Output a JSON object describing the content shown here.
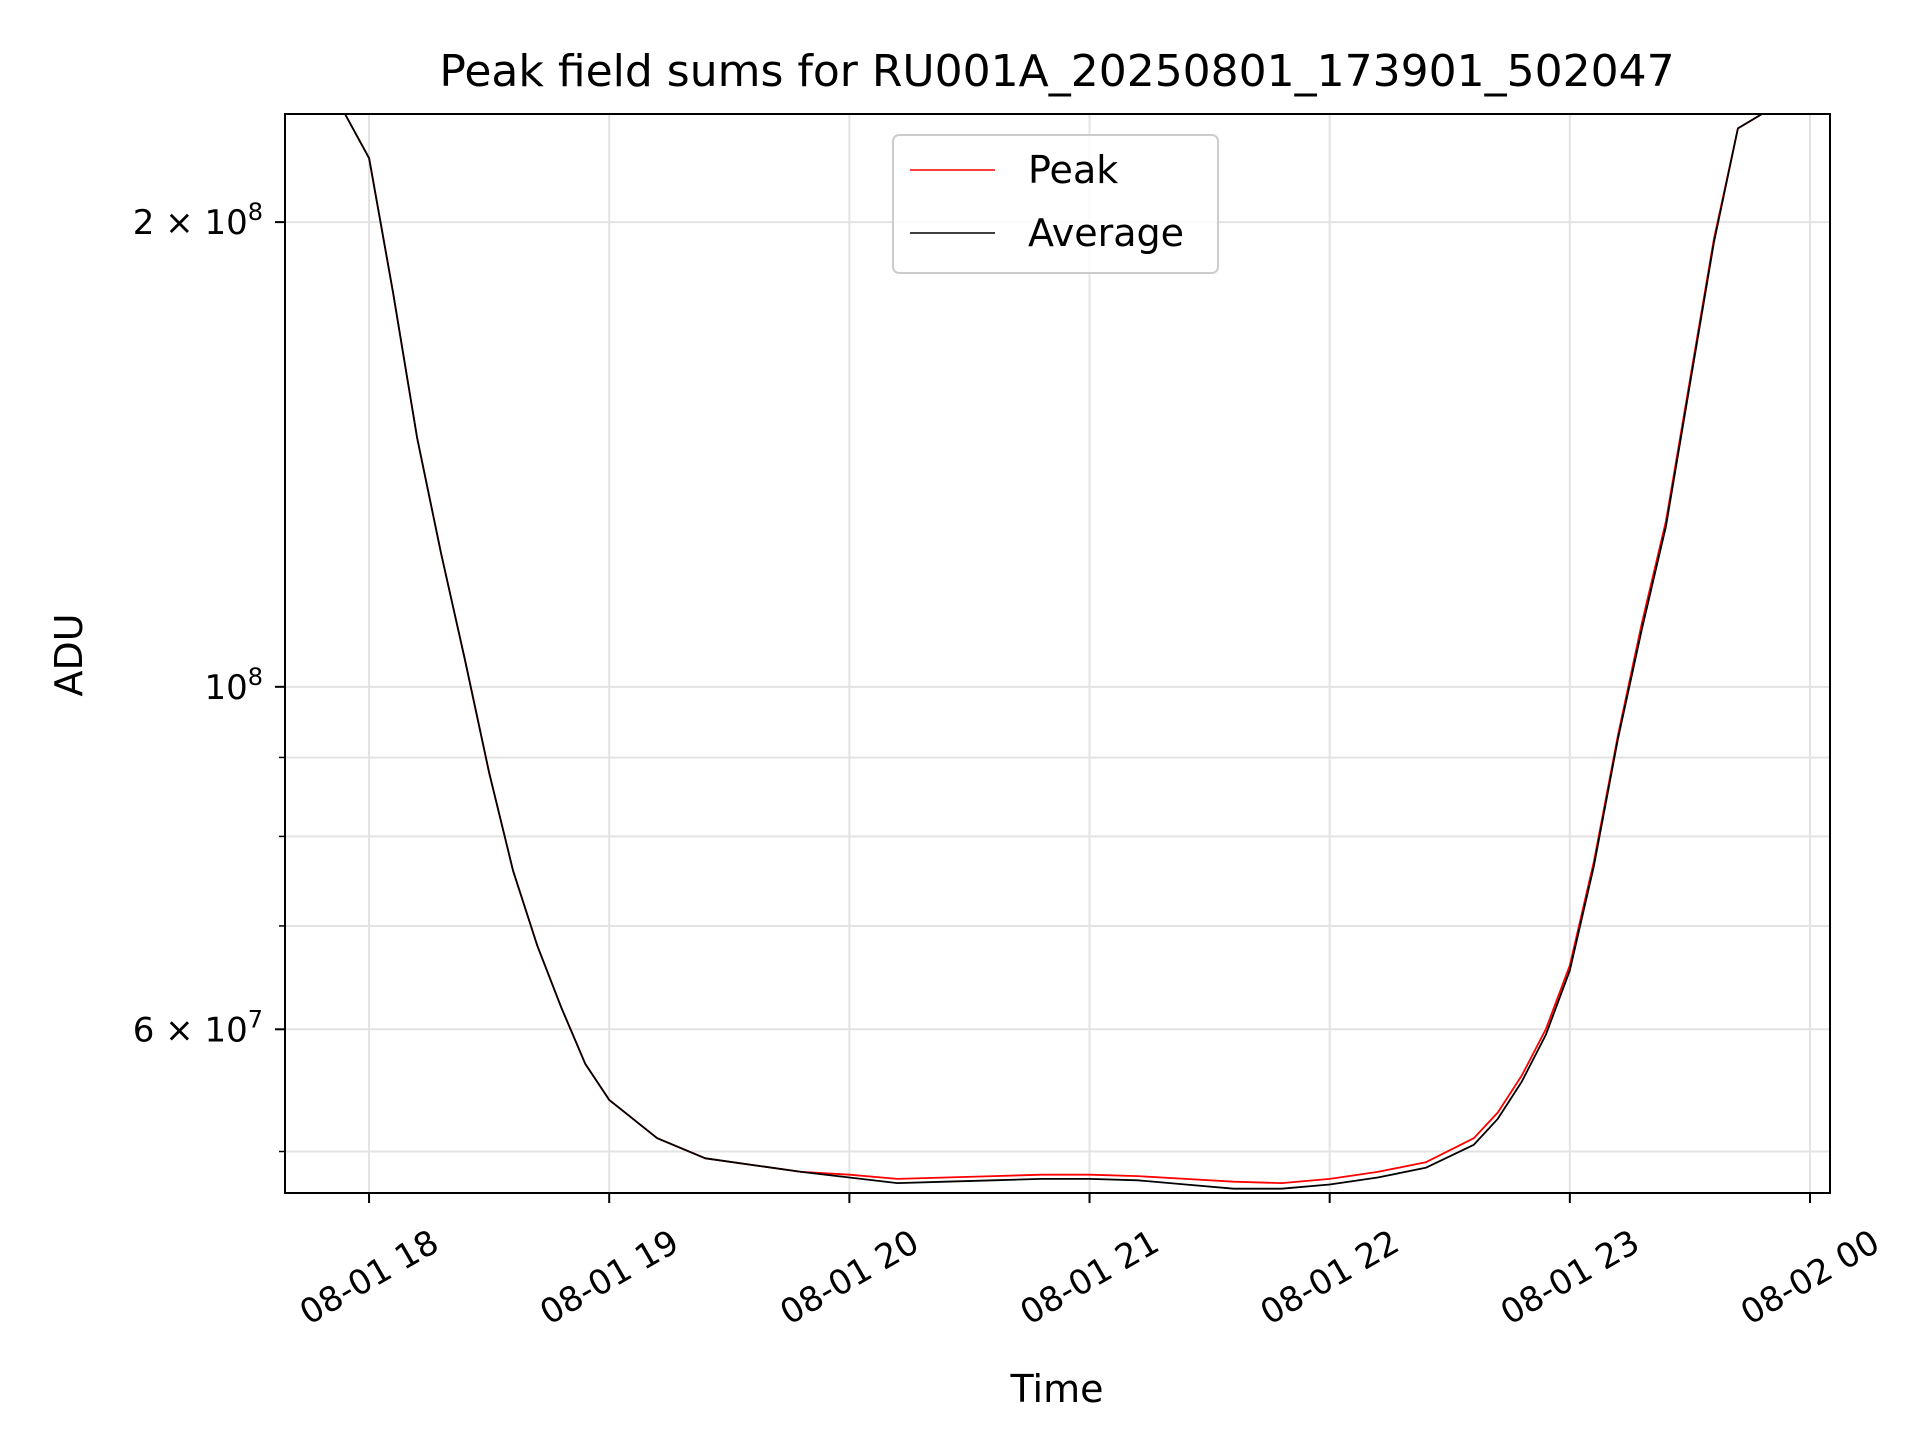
{
  "chart_data": {
    "type": "line",
    "title": "Peak field sums for RU001A_20250801_173901_502047",
    "xlabel": "Time",
    "ylabel": "ADU",
    "yscale": "log",
    "grid": true,
    "legend_placement": "top-center",
    "x_range": [
      "2025-08-01 17:39",
      "2025-08-02 00:05"
    ],
    "y_range": [
      47000000,
      235000000
    ],
    "x_ticks": [
      {
        "value": "2025-08-01 18:00",
        "label": "08-01 18"
      },
      {
        "value": "2025-08-01 19:00",
        "label": "08-01 19"
      },
      {
        "value": "2025-08-01 20:00",
        "label": "08-01 20"
      },
      {
        "value": "2025-08-01 21:00",
        "label": "08-01 21"
      },
      {
        "value": "2025-08-01 22:00",
        "label": "08-01 22"
      },
      {
        "value": "2025-08-01 23:00",
        "label": "08-01 23"
      },
      {
        "value": "2025-08-02 00:00",
        "label": "08-02 00"
      }
    ],
    "y_major_ticks": [
      {
        "value": 60000000,
        "mantissa": "6",
        "exponent": "7"
      },
      {
        "value": 100000000,
        "mantissa": "",
        "exponent": "8"
      },
      {
        "value": 200000000,
        "mantissa": "2",
        "exponent": "8"
      }
    ],
    "y_minor_ticks": [
      50000000,
      70000000,
      80000000,
      90000000
    ],
    "series": [
      {
        "name": "Peak",
        "color": "#ff0000",
        "x": [
          "2025-08-01 17:39",
          "2025-08-01 17:54",
          "2025-08-01 18:00",
          "2025-08-01 18:06",
          "2025-08-01 18:12",
          "2025-08-01 18:18",
          "2025-08-01 18:24",
          "2025-08-01 18:30",
          "2025-08-01 18:36",
          "2025-08-01 18:42",
          "2025-08-01 18:48",
          "2025-08-01 18:54",
          "2025-08-01 19:00",
          "2025-08-01 19:12",
          "2025-08-01 19:24",
          "2025-08-01 19:36",
          "2025-08-01 19:48",
          "2025-08-01 20:00",
          "2025-08-01 20:12",
          "2025-08-01 20:24",
          "2025-08-01 20:36",
          "2025-08-01 20:48",
          "2025-08-01 21:00",
          "2025-08-01 21:12",
          "2025-08-01 21:24",
          "2025-08-01 21:36",
          "2025-08-01 21:48",
          "2025-08-01 22:00",
          "2025-08-01 22:12",
          "2025-08-01 22:24",
          "2025-08-01 22:36",
          "2025-08-01 22:42",
          "2025-08-01 22:48",
          "2025-08-01 22:54",
          "2025-08-01 23:00",
          "2025-08-01 23:06",
          "2025-08-01 23:12",
          "2025-08-01 23:18",
          "2025-08-01 23:24",
          "2025-08-01 23:30",
          "2025-08-01 23:36",
          "2025-08-01 23:42",
          "2025-08-01 23:48",
          "2025-08-02 00:05"
        ],
        "y": [
          235000000,
          235000000,
          220000000,
          180000000,
          145000000,
          122000000,
          104000000,
          88000000,
          76000000,
          68000000,
          62000000,
          57000000,
          54000000,
          51000000,
          49500000,
          49000000,
          48500000,
          48300000,
          48000000,
          48100000,
          48200000,
          48300000,
          48300000,
          48200000,
          48000000,
          47800000,
          47700000,
          48000000,
          48500000,
          49200000,
          51000000,
          53000000,
          56000000,
          60000000,
          66000000,
          77000000,
          93000000,
          110000000,
          128000000,
          158000000,
          195000000,
          230000000,
          235000000,
          235000000
        ]
      },
      {
        "name": "Average",
        "color": "#000000",
        "x": [
          "2025-08-01 17:39",
          "2025-08-01 17:54",
          "2025-08-01 18:00",
          "2025-08-01 18:06",
          "2025-08-01 18:12",
          "2025-08-01 18:18",
          "2025-08-01 18:24",
          "2025-08-01 18:30",
          "2025-08-01 18:36",
          "2025-08-01 18:42",
          "2025-08-01 18:48",
          "2025-08-01 18:54",
          "2025-08-01 19:00",
          "2025-08-01 19:12",
          "2025-08-01 19:24",
          "2025-08-01 19:36",
          "2025-08-01 19:48",
          "2025-08-01 20:00",
          "2025-08-01 20:12",
          "2025-08-01 20:24",
          "2025-08-01 20:36",
          "2025-08-01 20:48",
          "2025-08-01 21:00",
          "2025-08-01 21:12",
          "2025-08-01 21:24",
          "2025-08-01 21:36",
          "2025-08-01 21:48",
          "2025-08-01 22:00",
          "2025-08-01 22:12",
          "2025-08-01 22:24",
          "2025-08-01 22:36",
          "2025-08-01 22:42",
          "2025-08-01 22:48",
          "2025-08-01 22:54",
          "2025-08-01 23:00",
          "2025-08-01 23:06",
          "2025-08-01 23:12",
          "2025-08-01 23:18",
          "2025-08-01 23:24",
          "2025-08-01 23:30",
          "2025-08-01 23:36",
          "2025-08-01 23:42",
          "2025-08-01 23:48",
          "2025-08-02 00:05"
        ],
        "y": [
          235000000,
          235000000,
          220000000,
          180000000,
          145000000,
          122000000,
          104000000,
          88000000,
          76000000,
          68000000,
          62000000,
          57000000,
          54000000,
          51000000,
          49500000,
          49000000,
          48500000,
          48100000,
          47700000,
          47800000,
          47900000,
          48000000,
          48000000,
          47900000,
          47600000,
          47300000,
          47300000,
          47600000,
          48100000,
          48800000,
          50500000,
          52500000,
          55500000,
          59500000,
          65500000,
          76500000,
          92500000,
          109000000,
          127000000,
          157000000,
          194000000,
          230000000,
          235000000,
          235000000
        ]
      }
    ]
  }
}
